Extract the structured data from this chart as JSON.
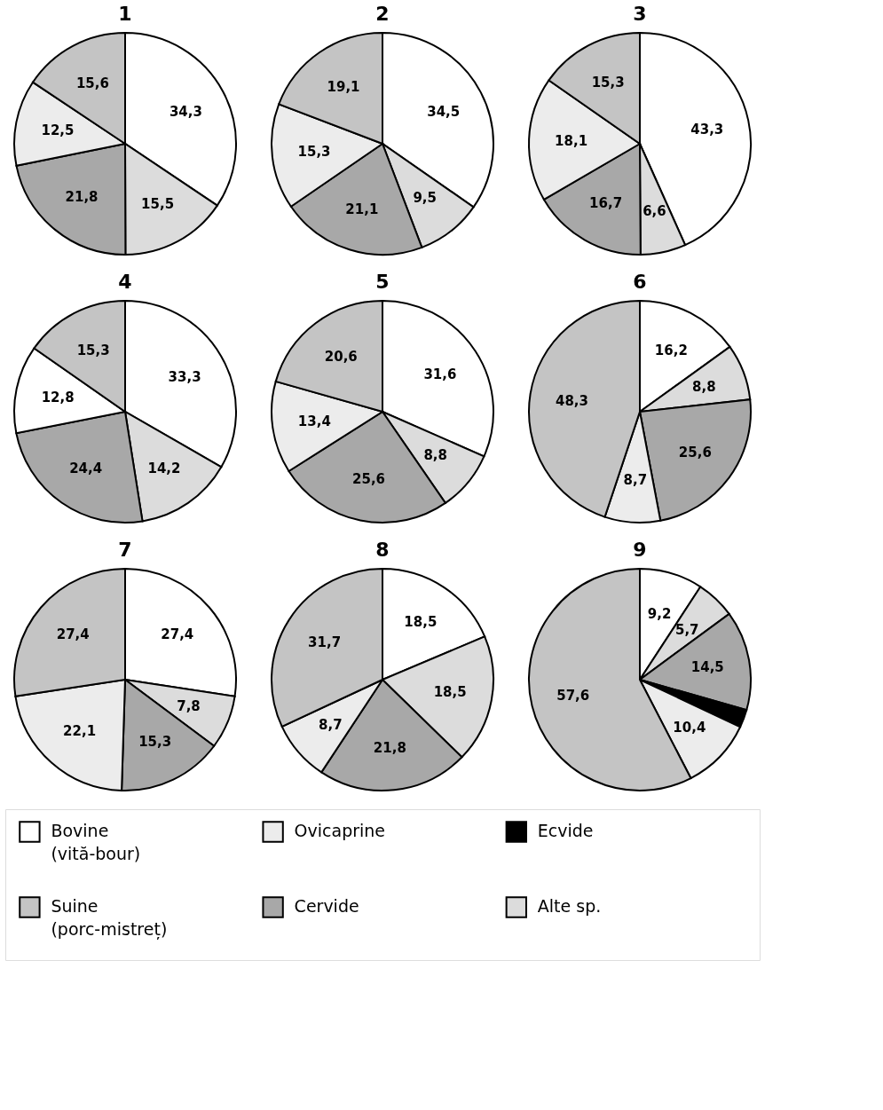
{
  "chart_data": [
    {
      "type": "pie",
      "title": "1",
      "categories": [
        null,
        null,
        null,
        null,
        null
      ],
      "values": [
        34.3,
        15.5,
        21.8,
        12.5,
        15.6
      ],
      "colors": [
        "#ffffff",
        "#dcdcdc",
        "#a8a8a8",
        "#ececec",
        "#c4c4c4"
      ],
      "value_labels": [
        "34,3",
        "15,5",
        "21,8",
        "12,5",
        "15,6"
      ]
    },
    {
      "type": "pie",
      "title": "2",
      "categories": [
        null,
        null,
        null,
        null,
        null
      ],
      "values": [
        34.5,
        9.5,
        21.1,
        15.3,
        19.1
      ],
      "colors": [
        "#ffffff",
        "#dcdcdc",
        "#a8a8a8",
        "#ececec",
        "#c4c4c4"
      ],
      "value_labels": [
        "34,5",
        "9,5",
        "21,1",
        "15,3",
        "19,1"
      ]
    },
    {
      "type": "pie",
      "title": "3",
      "categories": [
        null,
        null,
        null,
        null,
        null
      ],
      "values": [
        43.3,
        6.6,
        16.7,
        18.1,
        15.3
      ],
      "colors": [
        "#ffffff",
        "#dcdcdc",
        "#a8a8a8",
        "#ececec",
        "#c4c4c4"
      ],
      "value_labels": [
        "43,3",
        "6,6",
        "16,7",
        "18,1",
        "15,3"
      ]
    },
    {
      "type": "pie",
      "title": "4",
      "categories": [
        null,
        null,
        null,
        null,
        null
      ],
      "values": [
        33.3,
        14.2,
        24.4,
        12.8,
        15.3
      ],
      "colors": [
        "#ffffff",
        "#dcdcdc",
        "#a8a8a8",
        "#ffffff",
        "#c4c4c4"
      ],
      "value_labels": [
        "33,3",
        "14,2",
        "24,4",
        "12,8",
        "15,3"
      ]
    },
    {
      "type": "pie",
      "title": "5",
      "categories": [
        null,
        null,
        null,
        null,
        null
      ],
      "values": [
        31.6,
        8.8,
        25.6,
        13.4,
        20.6
      ],
      "colors": [
        "#ffffff",
        "#dcdcdc",
        "#a8a8a8",
        "#ececec",
        "#c4c4c4"
      ],
      "value_labels": [
        "31,6",
        "8,8",
        "25,6",
        "13,4",
        "20,6"
      ]
    },
    {
      "type": "pie",
      "title": "6",
      "categories": [
        null,
        null,
        null,
        null,
        null
      ],
      "values": [
        16.2,
        8.8,
        25.6,
        8.7,
        48.3
      ],
      "colors": [
        "#ffffff",
        "#dcdcdc",
        "#a8a8a8",
        "#ececec",
        "#c4c4c4"
      ],
      "value_labels": [
        "16,2",
        "8,8",
        "25,6",
        "8,7",
        "48,3"
      ]
    },
    {
      "type": "pie",
      "title": "7",
      "categories": [
        null,
        null,
        null,
        null,
        null
      ],
      "values": [
        27.4,
        7.8,
        15.3,
        22.1,
        27.4
      ],
      "colors": [
        "#ffffff",
        "#dcdcdc",
        "#a8a8a8",
        "#ececec",
        "#c4c4c4"
      ],
      "value_labels": [
        "27,4",
        "7,8",
        "15,3",
        "22,1",
        "27,4"
      ]
    },
    {
      "type": "pie",
      "title": "8",
      "categories": [
        null,
        null,
        null,
        null,
        null
      ],
      "values": [
        18.5,
        18.5,
        21.8,
        8.7,
        31.7
      ],
      "colors": [
        "#ffffff",
        "#dcdcdc",
        "#a8a8a8",
        "#ececec",
        "#c4c4c4"
      ],
      "value_labels": [
        "18,5",
        "18,5",
        "21,8",
        "8,7",
        "31,7"
      ]
    },
    {
      "type": "pie",
      "title": "9",
      "categories": [
        "Bovine (vită-bour)",
        "Alte sp.",
        "Cervide",
        "Ecvide",
        "Ovicaprine",
        "Suine (porc-mistreț)"
      ],
      "values": [
        9.2,
        5.7,
        14.5,
        2.6,
        10.4,
        57.6
      ],
      "colors": [
        "#ffffff",
        "#dcdcdc",
        "#a8a8a8",
        "#000000",
        "#ececec",
        "#c4c4c4"
      ],
      "value_labels": [
        "9,2",
        "5,7",
        "14,5",
        null,
        "10,4",
        "57,6"
      ],
      "legend": "bottom"
    }
  ]
}
